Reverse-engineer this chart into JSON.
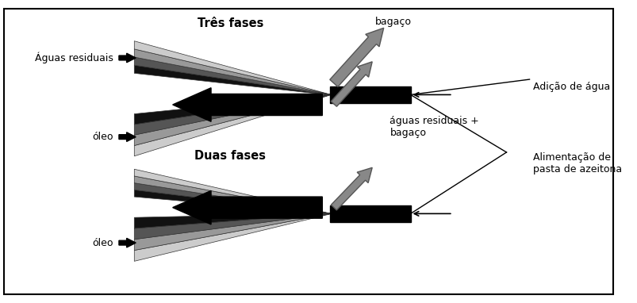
{
  "bg_color": "#ffffff",
  "border_color": "#000000",
  "tres_fases_label": "Três fases",
  "duas_fases_label": "Duas fases",
  "bagaco_label": "bagaço",
  "aguas_residuais_label": "Águas residuais",
  "oleo_label_top": "óleo",
  "oleo_label_bottom": "óleo",
  "aguas_residuais_bagaco_label": "águas residuais +\nbagaço",
  "adicao_agua_label": "Adição de água",
  "alimentacao_label": "Alimentação de\npasta de azeitona",
  "stripe_colors_upper": [
    "#111111",
    "#555555",
    "#999999",
    "#cccccc"
  ],
  "stripe_colors_lower": [
    "#cccccc",
    "#999999",
    "#555555",
    "#111111"
  ],
  "black": "#000000",
  "gray_arrow": "#888888",
  "gray_arrow_edge": "#555555"
}
